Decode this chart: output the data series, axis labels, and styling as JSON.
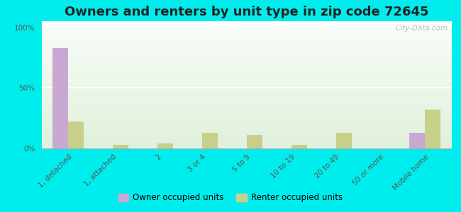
{
  "title": "Owners and renters by unit type in zip code 72645",
  "categories": [
    "1, detached",
    "1, attached",
    "2",
    "3 or 4",
    "5 to 9",
    "10 to 19",
    "20 to 49",
    "50 or more",
    "Mobile home"
  ],
  "owner_values": [
    83,
    0,
    0,
    0,
    0,
    0,
    0,
    0,
    13
  ],
  "renter_values": [
    22,
    3,
    4,
    13,
    11,
    3,
    13,
    0,
    32
  ],
  "owner_color": "#c9a8d4",
  "renter_color": "#c8cf8a",
  "outer_bg": "#00eded",
  "ylabel_ticks": [
    "0%",
    "50%",
    "100%"
  ],
  "yticks": [
    0,
    50,
    100
  ],
  "ylim": [
    0,
    105
  ],
  "bar_width": 0.35,
  "legend_owner": "Owner occupied units",
  "legend_renter": "Renter occupied units",
  "watermark": "City-Data.com",
  "title_fontsize": 13,
  "tick_fontsize": 7.5
}
